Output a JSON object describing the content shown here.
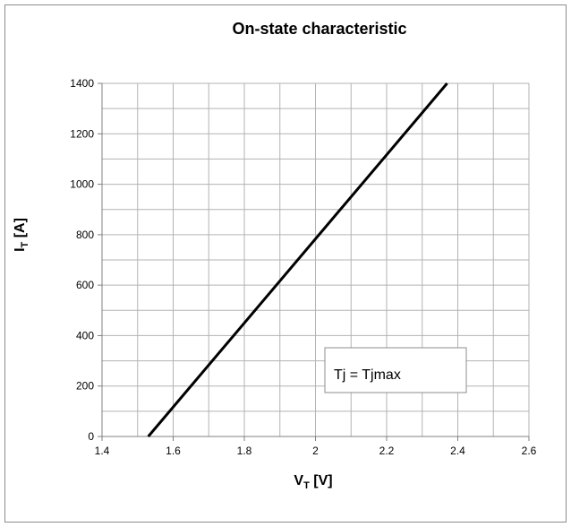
{
  "chart_data": {
    "type": "line",
    "title": "On-state characteristic",
    "xlabel": {
      "main": "V",
      "sub": "T",
      "unit": " [V]"
    },
    "ylabel": {
      "main": "I",
      "sub": "T",
      "unit": " [A]"
    },
    "xlim": [
      1.4,
      2.6
    ],
    "ylim": [
      0,
      1400
    ],
    "x_ticks": [
      "1.4",
      "1.6",
      "1.8",
      "2",
      "2.2",
      "2.4",
      "2.6"
    ],
    "y_ticks": [
      "0",
      "200",
      "400",
      "600",
      "800",
      "1000",
      "1200",
      "1400"
    ],
    "grid": true,
    "legend_text": "Tj = Tjmax",
    "series": [
      {
        "x": [
          1.53,
          2.37
        ],
        "y": [
          0,
          1400
        ]
      }
    ],
    "colors": {
      "line": "#000000",
      "grid": "#b3b3b3",
      "frame": "#8c8c8c"
    }
  }
}
